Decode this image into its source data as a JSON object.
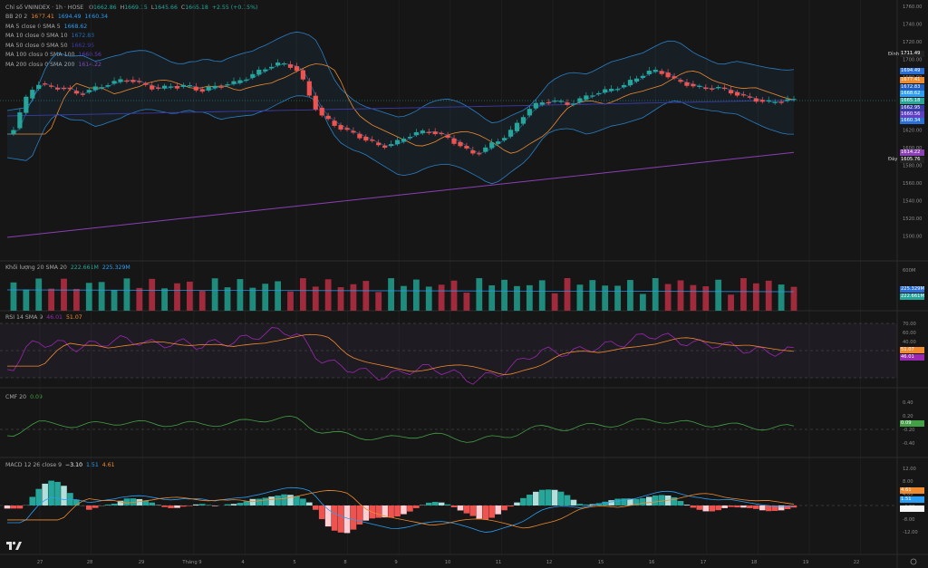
{
  "header": {
    "symbol": "Chỉ số VNINDEX · 1h · HOSE",
    "ohlc": [
      {
        "k": "O",
        "v": "1662.86",
        "c": "#26a69a"
      },
      {
        "k": "H",
        "v": "1669.15",
        "c": "#26a69a"
      },
      {
        "k": "L",
        "v": "1645.66",
        "c": "#26a69a"
      },
      {
        "k": "C",
        "v": "1665.18",
        "c": "#26a69a"
      },
      {
        "k": "",
        "v": "+2.55 (+0.15%)",
        "c": "#26a69a"
      }
    ]
  },
  "legends": [
    {
      "label": "BB 20 2",
      "values": [
        {
          "v": "1677.41",
          "c": "#f08a2e"
        },
        {
          "v": "1694.49",
          "c": "#2a9df4"
        },
        {
          "v": "1660.34",
          "c": "#2a9df4"
        }
      ]
    },
    {
      "label": "MA 5 close 0 SMA 5",
      "values": [
        {
          "v": "1668.62",
          "c": "#2a9df4"
        }
      ]
    },
    {
      "label": "MA 10 close 0 SMA 10",
      "values": [
        {
          "v": "1672.83",
          "c": "#1f6fbf"
        }
      ]
    },
    {
      "label": "MA 50 close 0 SMA 50",
      "values": [
        {
          "v": "1662.95",
          "c": "#3b3ba8"
        }
      ]
    },
    {
      "label": "MA 100 close 0 SMA 100",
      "values": [
        {
          "v": "1660.56",
          "c": "#5f3fc4"
        }
      ]
    },
    {
      "label": "MA 200 close 0 SMA 200",
      "values": [
        {
          "v": "1614.22",
          "c": "#8b3fb5"
        }
      ]
    }
  ],
  "volume_legend": {
    "label": "Khối lượng 20 SMA 20",
    "values": [
      {
        "v": "222.661M",
        "c": "#26a69a"
      },
      {
        "v": "225.329M",
        "c": "#2a9df4"
      }
    ]
  },
  "rsi_legend": {
    "label": "RSI 14 SMA 9",
    "values": [
      {
        "v": "46.01",
        "c": "#9c27b0"
      },
      {
        "v": "51.07",
        "c": "#f08a2e"
      }
    ]
  },
  "cmf_legend": {
    "label": "CMF 20",
    "values": [
      {
        "v": "0.09",
        "c": "#43a047"
      }
    ]
  },
  "macd_legend": {
    "label": "MACD 12 26 close 9",
    "values": [
      {
        "v": "−3.10",
        "c": "#ffffff"
      },
      {
        "v": "1.51",
        "c": "#2a9df4"
      },
      {
        "v": "4.61",
        "c": "#f08a2e"
      }
    ]
  },
  "price_axis": {
    "labels": [
      "1760.00",
      "1740.00",
      "1720.00",
      "1700.00",
      "1680.00",
      "1660.00",
      "1640.00",
      "1620.00",
      "1600.00",
      "1580.00",
      "1560.00",
      "1540.00",
      "1520.00",
      "1500.00"
    ],
    "top_label": "Đỉnh",
    "top_value": "1711.49",
    "bottom_label": "Đáy",
    "bottom_value": "1605.76",
    "tags": [
      {
        "v": "1694.49",
        "c": "#2a6fd6"
      },
      {
        "v": "1677.41",
        "c": "#f08a2e"
      },
      {
        "v": "1672.83",
        "c": "#1f5fbf"
      },
      {
        "v": "1668.62",
        "c": "#2a9df4"
      },
      {
        "v": "1665.18",
        "c": "#26a69a"
      },
      {
        "v": "1662.95",
        "c": "#3b3ba8"
      },
      {
        "v": "1660.56",
        "c": "#5f3fc4"
      },
      {
        "v": "1660.34",
        "c": "#2a6fd6"
      },
      {
        "v": "1614.22",
        "c": "#8b3fb5"
      }
    ]
  },
  "volume_axis": {
    "labels": [
      "600M"
    ],
    "tags": [
      {
        "v": "225.329M",
        "c": "#2a6fd6"
      },
      {
        "v": "222.661M",
        "c": "#26a69a"
      }
    ]
  },
  "rsi_axis": {
    "labels": [
      "70.00",
      "60.00",
      "40.00",
      "30.00"
    ],
    "tags": [
      {
        "v": "51.07",
        "c": "#f08a2e"
      },
      {
        "v": "46.01",
        "c": "#9c27b0"
      }
    ]
  },
  "cmf_axis": {
    "labels": [
      "0.40",
      "0.20",
      "-0.20",
      "-0.40"
    ],
    "tags": [
      {
        "v": "0.09",
        "c": "#43a047"
      }
    ]
  },
  "macd_axis": {
    "labels": [
      "12.00",
      "8.00",
      "4.00",
      "-4.00",
      "-8.00",
      "-12.00"
    ],
    "tags": [
      {
        "v": "4.61",
        "c": "#f08a2e"
      },
      {
        "v": "1.51",
        "c": "#2a9df4"
      },
      {
        "v": "-3.10",
        "c": "#f5f5f5"
      }
    ]
  },
  "time_axis": {
    "labels": [
      "27",
      "28",
      "29",
      "Tháng 9",
      "4",
      "5",
      "8",
      "9",
      "10",
      "11",
      "12",
      "15",
      "16",
      "17",
      "18",
      "19",
      "22"
    ]
  },
  "colors": {
    "up": "#26a69a",
    "down": "#ef5350",
    "bg": "#161616",
    "grid": "#232323"
  }
}
